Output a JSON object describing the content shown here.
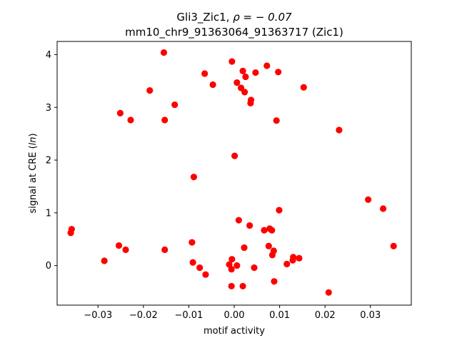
{
  "chart_data": {
    "type": "scatter",
    "title_line1_prefix": "Gli3_Zic1, ",
    "title_line1_rho": "ρ = − 0.07",
    "title_line2": "mm10_chr9_91363064_91363717 (Zic1)",
    "xlabel": "motif activity",
    "ylabel_prefix": "signal at CRE (",
    "ylabel_italic": "ln",
    "ylabel_suffix": ")",
    "xlim": [
      -0.039,
      0.039
    ],
    "ylim": [
      -0.75,
      4.25
    ],
    "xticks": [
      -0.03,
      -0.02,
      -0.01,
      0.0,
      0.01,
      0.02,
      0.03
    ],
    "xtick_labels": [
      "−0.03",
      "−0.02",
      "−0.01",
      "0.00",
      "0.01",
      "0.02",
      "0.03"
    ],
    "yticks": [
      0,
      1,
      2,
      3,
      4
    ],
    "ytick_labels": [
      "0",
      "1",
      "2",
      "3",
      "4"
    ],
    "marker_color": "#ff0000",
    "points": [
      {
        "x": -0.0155,
        "y": 4.04
      },
      {
        "x": -0.0005,
        "y": 3.87
      },
      {
        "x": 0.0072,
        "y": 3.79
      },
      {
        "x": 0.0019,
        "y": 3.69
      },
      {
        "x": 0.0097,
        "y": 3.67
      },
      {
        "x": -0.0065,
        "y": 3.64
      },
      {
        "x": 0.0047,
        "y": 3.66
      },
      {
        "x": 0.0025,
        "y": 3.58
      },
      {
        "x": 0.0006,
        "y": 3.47
      },
      {
        "x": -0.0047,
        "y": 3.43
      },
      {
        "x": 0.0015,
        "y": 3.37
      },
      {
        "x": 0.0153,
        "y": 3.38
      },
      {
        "x": -0.0186,
        "y": 3.32
      },
      {
        "x": 0.0023,
        "y": 3.29
      },
      {
        "x": 0.0037,
        "y": 3.14
      },
      {
        "x": 0.0036,
        "y": 3.08
      },
      {
        "x": -0.0131,
        "y": 3.05
      },
      {
        "x": -0.0251,
        "y": 2.89
      },
      {
        "x": -0.0228,
        "y": 2.76
      },
      {
        "x": -0.0153,
        "y": 2.76
      },
      {
        "x": 0.0093,
        "y": 2.75
      },
      {
        "x": 0.0231,
        "y": 2.57
      },
      {
        "x": 0.0001,
        "y": 2.08
      },
      {
        "x": -0.0089,
        "y": 1.68
      },
      {
        "x": 0.0295,
        "y": 1.25
      },
      {
        "x": 0.0328,
        "y": 1.08
      },
      {
        "x": 0.0099,
        "y": 1.05
      },
      {
        "x": 0.001,
        "y": 0.86
      },
      {
        "x": 0.0034,
        "y": 0.76
      },
      {
        "x": -0.0358,
        "y": 0.69
      },
      {
        "x": 0.0078,
        "y": 0.7
      },
      {
        "x": 0.0066,
        "y": 0.67
      },
      {
        "x": 0.0083,
        "y": 0.67
      },
      {
        "x": -0.036,
        "y": 0.62
      },
      {
        "x": -0.0093,
        "y": 0.44
      },
      {
        "x": -0.0254,
        "y": 0.38
      },
      {
        "x": 0.0351,
        "y": 0.37
      },
      {
        "x": 0.0076,
        "y": 0.37
      },
      {
        "x": 0.0022,
        "y": 0.34
      },
      {
        "x": -0.0239,
        "y": 0.3
      },
      {
        "x": -0.0153,
        "y": 0.3
      },
      {
        "x": 0.0087,
        "y": 0.28
      },
      {
        "x": 0.0084,
        "y": 0.2
      },
      {
        "x": 0.013,
        "y": 0.16
      },
      {
        "x": 0.0143,
        "y": 0.14
      },
      {
        "x": -0.0005,
        "y": 0.12
      },
      {
        "x": 0.0129,
        "y": 0.1
      },
      {
        "x": -0.0286,
        "y": 0.09
      },
      {
        "x": -0.0091,
        "y": 0.06
      },
      {
        "x": 0.0116,
        "y": 0.03
      },
      {
        "x": -0.0011,
        "y": 0.02
      },
      {
        "x": 0.0006,
        "y": 0.0
      },
      {
        "x": -0.0076,
        "y": -0.04
      },
      {
        "x": 0.0044,
        "y": -0.04
      },
      {
        "x": -0.0006,
        "y": -0.07
      },
      {
        "x": -0.0063,
        "y": -0.17
      },
      {
        "x": 0.0088,
        "y": -0.3
      },
      {
        "x": -0.0006,
        "y": -0.39
      },
      {
        "x": 0.0019,
        "y": -0.39
      },
      {
        "x": 0.0208,
        "y": -0.51
      }
    ]
  }
}
